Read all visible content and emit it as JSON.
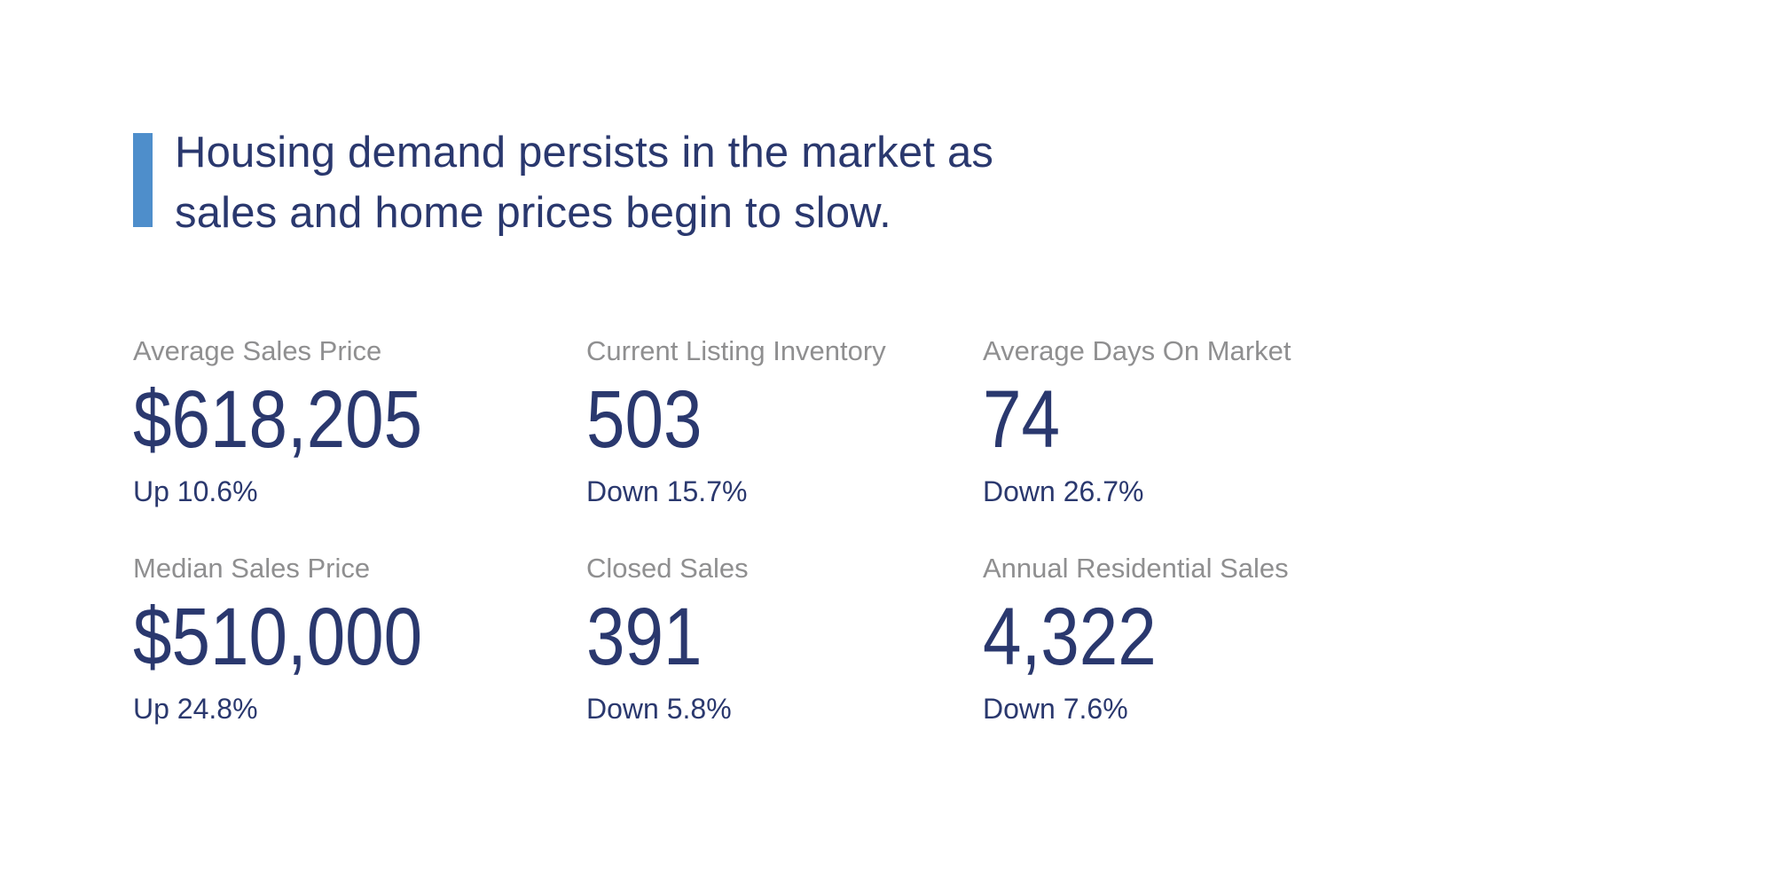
{
  "colors": {
    "accent": "#4E8ECB",
    "navy": "#2A386E",
    "gray": "#8F8F90"
  },
  "headline": {
    "lines": [
      "Housing demand persists in the market as",
      "sales and home prices begin to slow."
    ]
  },
  "stats": {
    "items": [
      {
        "label": "Average Sales Price",
        "value": "$618,205",
        "change": "Up 10.6%"
      },
      {
        "label": "Current Listing Inventory",
        "value": "503",
        "change": "Down 15.7%"
      },
      {
        "label": "Average Days On Market",
        "value": "74",
        "change": "Down 26.7%"
      },
      {
        "label": "Median Sales Price",
        "value": "$510,000",
        "change": "Up 24.8%"
      },
      {
        "label": "Closed Sales",
        "value": "391",
        "change": "Down 5.8%"
      },
      {
        "label": "Annual Residential Sales",
        "value": "4,322",
        "change": "Down 7.6%"
      }
    ]
  }
}
